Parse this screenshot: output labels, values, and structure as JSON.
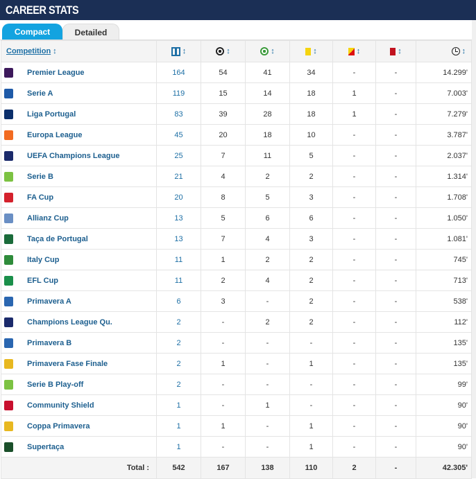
{
  "header": {
    "title": "CAREER STATS"
  },
  "tabs": [
    {
      "label": "Compact",
      "active": true
    },
    {
      "label": "Detailed",
      "active": false
    }
  ],
  "table": {
    "competition_header": "Competition",
    "sort_glyph": "↕",
    "column_icons": [
      "appearances-icon",
      "goal-icon",
      "assist-icon",
      "yellow-card-icon",
      "second-yellow-card-icon",
      "red-card-icon",
      "clock-icon"
    ],
    "rows": [
      {
        "competition": "Premier League",
        "logo_color": "#3d195b",
        "apps": "164",
        "goals": "54",
        "assists": "41",
        "yellow": "34",
        "yellowred": "-",
        "red": "-",
        "minutes": "14.299'"
      },
      {
        "competition": "Serie A",
        "logo_color": "#1e5aa8",
        "apps": "119",
        "goals": "15",
        "assists": "14",
        "yellow": "18",
        "yellowred": "1",
        "red": "-",
        "minutes": "7.003'"
      },
      {
        "competition": "Liga Portugal",
        "logo_color": "#0b2f6b",
        "apps": "83",
        "goals": "39",
        "assists": "28",
        "yellow": "18",
        "yellowred": "1",
        "red": "-",
        "minutes": "7.279'"
      },
      {
        "competition": "Europa League",
        "logo_color": "#f26b21",
        "apps": "45",
        "goals": "20",
        "assists": "18",
        "yellow": "10",
        "yellowred": "-",
        "red": "-",
        "minutes": "3.787'"
      },
      {
        "competition": "UEFA Champions League",
        "logo_color": "#1b2a6b",
        "apps": "25",
        "goals": "7",
        "assists": "11",
        "yellow": "5",
        "yellowred": "-",
        "red": "-",
        "minutes": "2.037'"
      },
      {
        "competition": "Serie B",
        "logo_color": "#7cc242",
        "apps": "21",
        "goals": "4",
        "assists": "2",
        "yellow": "2",
        "yellowred": "-",
        "red": "-",
        "minutes": "1.314'"
      },
      {
        "competition": "FA Cup",
        "logo_color": "#d4212c",
        "apps": "20",
        "goals": "8",
        "assists": "5",
        "yellow": "3",
        "yellowred": "-",
        "red": "-",
        "minutes": "1.708'"
      },
      {
        "competition": "Allianz Cup",
        "logo_color": "#6a8fc4",
        "apps": "13",
        "goals": "5",
        "assists": "6",
        "yellow": "6",
        "yellowred": "-",
        "red": "-",
        "minutes": "1.050'"
      },
      {
        "competition": "Taça de Portugal",
        "logo_color": "#1a6b3a",
        "apps": "13",
        "goals": "7",
        "assists": "4",
        "yellow": "3",
        "yellowred": "-",
        "red": "-",
        "minutes": "1.081'"
      },
      {
        "competition": "Italy Cup",
        "logo_color": "#2e8b3a",
        "apps": "11",
        "goals": "1",
        "assists": "2",
        "yellow": "2",
        "yellowred": "-",
        "red": "-",
        "minutes": "745'"
      },
      {
        "competition": "EFL Cup",
        "logo_color": "#1a8f4a",
        "apps": "11",
        "goals": "2",
        "assists": "4",
        "yellow": "2",
        "yellowred": "-",
        "red": "-",
        "minutes": "713'"
      },
      {
        "competition": "Primavera A",
        "logo_color": "#2a66b0",
        "apps": "6",
        "goals": "3",
        "assists": "-",
        "yellow": "2",
        "yellowred": "-",
        "red": "-",
        "minutes": "538'"
      },
      {
        "competition": "Champions League Qu.",
        "logo_color": "#1b2a6b",
        "apps": "2",
        "goals": "-",
        "assists": "2",
        "yellow": "2",
        "yellowred": "-",
        "red": "-",
        "minutes": "112'"
      },
      {
        "competition": "Primavera B",
        "logo_color": "#2a66b0",
        "apps": "2",
        "goals": "-",
        "assists": "-",
        "yellow": "-",
        "yellowred": "-",
        "red": "-",
        "minutes": "135'"
      },
      {
        "competition": "Primavera Fase Finale",
        "logo_color": "#e8b820",
        "apps": "2",
        "goals": "1",
        "assists": "-",
        "yellow": "1",
        "yellowred": "-",
        "red": "-",
        "minutes": "135'"
      },
      {
        "competition": "Serie B Play-off",
        "logo_color": "#7cc242",
        "apps": "2",
        "goals": "-",
        "assists": "-",
        "yellow": "-",
        "yellowred": "-",
        "red": "-",
        "minutes": "99'"
      },
      {
        "competition": "Community Shield",
        "logo_color": "#c8102e",
        "apps": "1",
        "goals": "-",
        "assists": "1",
        "yellow": "-",
        "yellowred": "-",
        "red": "-",
        "minutes": "90'"
      },
      {
        "competition": "Coppa Primavera",
        "logo_color": "#e8b820",
        "apps": "1",
        "goals": "1",
        "assists": "-",
        "yellow": "1",
        "yellowred": "-",
        "red": "-",
        "minutes": "90'"
      },
      {
        "competition": "Supertaça",
        "logo_color": "#1a4f2a",
        "apps": "1",
        "goals": "-",
        "assists": "-",
        "yellow": "1",
        "yellowred": "-",
        "red": "-",
        "minutes": "90'"
      }
    ],
    "totals": {
      "label": "Total :",
      "apps": "542",
      "goals": "167",
      "assists": "138",
      "yellow": "110",
      "yellowred": "2",
      "red": "-",
      "minutes": "42.305'"
    }
  },
  "colors": {
    "header_bg": "#1b2f55",
    "tab_active": "#13a3e0",
    "link": "#1d6fa5"
  }
}
